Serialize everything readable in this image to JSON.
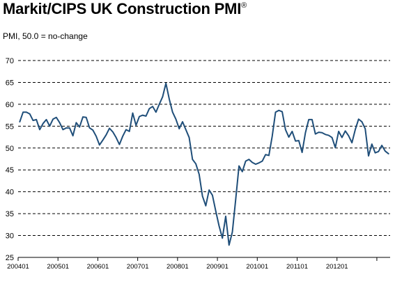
{
  "title": "Markit/CIPS UK Construction PMI",
  "title_mark": "®",
  "subtitle": "PMI, 50.0 = no-change",
  "colors": {
    "line": "#1f4e79",
    "grid": "#000000"
  },
  "chart_data": {
    "type": "line",
    "title": "Markit/CIPS UK Construction PMI",
    "subtitle": "PMI, 50.0 = no-change",
    "xlabel": "",
    "ylabel": "",
    "ylim": [
      25,
      70
    ],
    "yticks": [
      25,
      30,
      35,
      40,
      45,
      50,
      55,
      60,
      65,
      70
    ],
    "xticks": [
      "200401",
      "200501",
      "200601",
      "200701",
      "200801",
      "200901",
      "201001",
      "201101",
      "201201"
    ],
    "grid": "horizontal dashed",
    "x_start": "2004-01",
    "series": [
      {
        "name": "",
        "values": [
          56.0,
          58.2,
          58.2,
          57.8,
          56.3,
          56.5,
          54.2,
          55.6,
          56.5,
          55.0,
          56.6,
          57.0,
          55.8,
          54.2,
          54.6,
          54.6,
          52.8,
          55.8,
          54.8,
          57.1,
          57.0,
          54.6,
          54.1,
          52.7,
          50.7,
          51.8,
          53.0,
          54.5,
          53.7,
          52.4,
          50.8,
          52.7,
          54.2,
          53.8,
          58.0,
          55.2,
          57.2,
          57.5,
          57.3,
          59.0,
          59.5,
          58.2,
          60.0,
          61.7,
          64.8,
          61.2,
          58.2,
          56.6,
          54.4,
          56.0,
          54.2,
          52.4,
          47.4,
          46.4,
          44.0,
          39.0,
          36.8,
          40.4,
          39.2,
          35.6,
          32.2,
          29.4,
          34.4,
          27.8,
          30.8,
          38.2,
          45.9,
          44.6,
          47.0,
          47.4,
          46.7,
          46.3,
          46.6,
          47.0,
          48.5,
          48.3,
          52.7,
          58.2,
          58.6,
          58.3,
          54.2,
          52.5,
          53.8,
          51.6,
          51.7,
          49.0,
          53.5,
          56.5,
          56.5,
          53.2,
          53.6,
          53.5,
          53.1,
          52.9,
          52.4,
          50.1,
          53.8,
          52.4,
          53.9,
          52.8,
          51.2,
          54.2,
          56.6,
          56.0,
          54.4,
          48.2,
          50.9,
          48.9,
          49.2,
          50.6,
          49.3,
          48.7
        ]
      }
    ]
  }
}
